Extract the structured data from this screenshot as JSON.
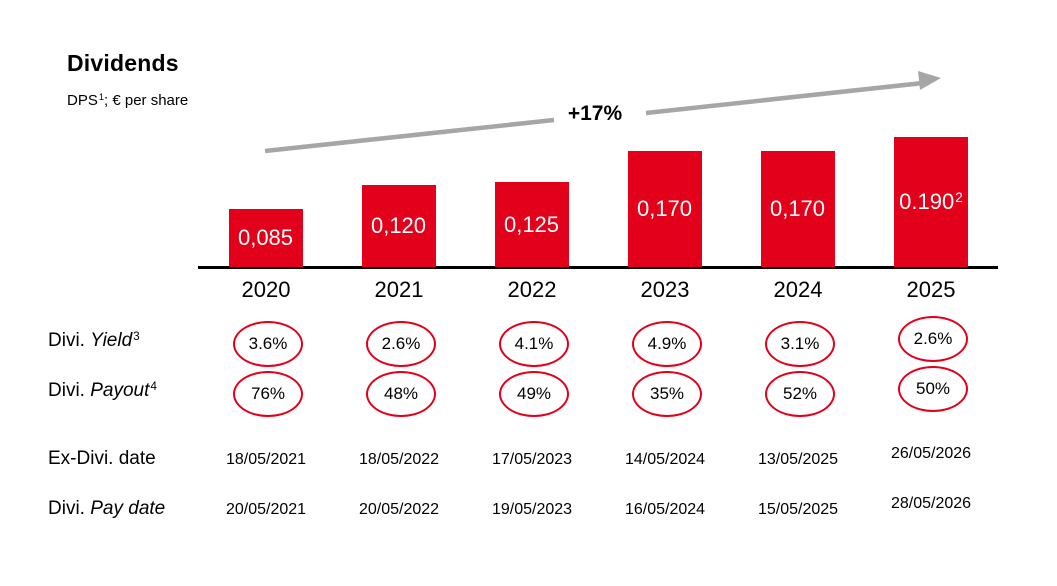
{
  "header": {
    "title": "Dividends",
    "subtitle": {
      "prefix": "DPS",
      "sup": "1",
      "suffix": "; € per share"
    }
  },
  "growth_annotation": "+17%",
  "colors": {
    "bar_red": "#E2001A",
    "oval_outline_red": "#E2001A",
    "arrow_gray": "#A6A6A6",
    "axis_black": "#000000",
    "bar_label_white": "#FFFFFF"
  },
  "chart_data": {
    "type": "bar",
    "title": "Dividends",
    "unit_label": "DPS; € per share",
    "categories": [
      "2020",
      "2021",
      "2022",
      "2023",
      "2024",
      "2025"
    ],
    "values": [
      0.085,
      0.12,
      0.125,
      0.17,
      0.17,
      0.19
    ],
    "bar_labels": [
      "0,085",
      "0,120",
      "0,125",
      "0,170",
      "0,170",
      "0.190"
    ],
    "bar_label_sups": [
      "",
      "",
      "",
      "",
      "",
      "2"
    ],
    "growth_annotation": "+17%",
    "ylim": [
      0,
      0.2
    ],
    "gridlines": false,
    "legend": "none",
    "rows": {
      "yield": {
        "label": {
          "prefix": "Divi. ",
          "italic": "Yield",
          "sup": "3"
        },
        "values": [
          "3.6%",
          "2.6%",
          "4.1%",
          "4.9%",
          "3.1%",
          "2.6%"
        ]
      },
      "payout": {
        "label": {
          "prefix": "Divi. ",
          "italic": "Payout",
          "sup": "4"
        },
        "values": [
          "76%",
          "48%",
          "49%",
          "35%",
          "52%",
          "50%"
        ]
      },
      "ex_dividend_date": {
        "label": {
          "prefix": "Ex-Divi. date",
          "italic": "",
          "sup": ""
        },
        "values": [
          "18/05/2021",
          "18/05/2022",
          "17/05/2023",
          "14/05/2024",
          "13/05/2025",
          "26/05/2026"
        ]
      },
      "pay_date": {
        "label": {
          "prefix": "Divi. ",
          "italic": "Pay date",
          "sup": ""
        },
        "values": [
          "20/05/2021",
          "20/05/2022",
          "19/05/2023",
          "16/05/2024",
          "15/05/2025",
          "28/05/2026"
        ]
      }
    }
  }
}
